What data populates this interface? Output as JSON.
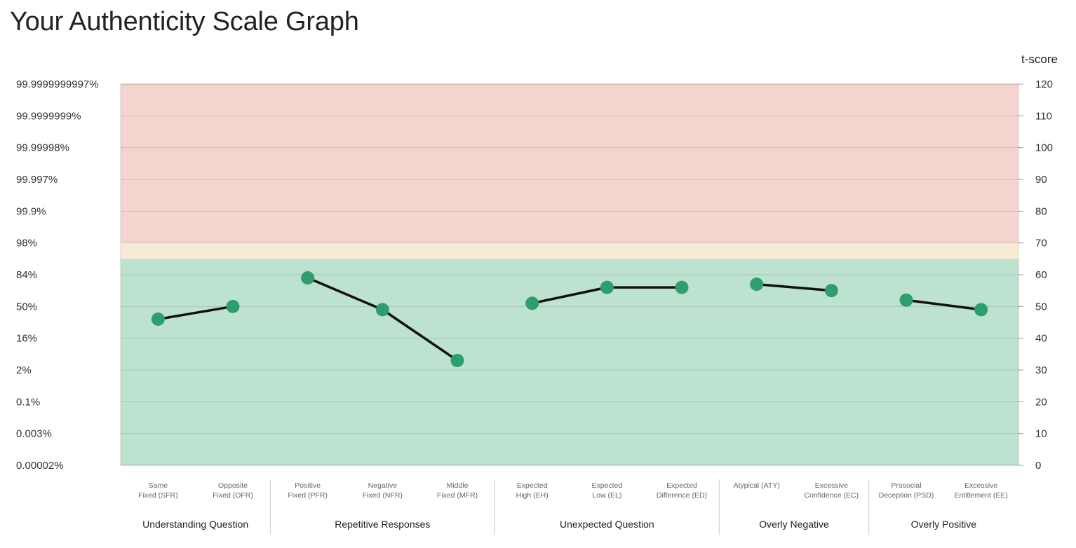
{
  "page": {
    "title": "Your Authenticity Scale Graph"
  },
  "chart_data": {
    "type": "line",
    "title": "Your Authenticity Scale Graph",
    "y_right_label": "t-score",
    "ylim": [
      0,
      120
    ],
    "y_right_ticks": [
      0,
      10,
      20,
      30,
      40,
      50,
      60,
      70,
      80,
      90,
      100,
      110,
      120
    ],
    "y_left_ticks": [
      {
        "t": 0,
        "label": "0.00002%"
      },
      {
        "t": 10,
        "label": "0.003%"
      },
      {
        "t": 20,
        "label": "0.1%"
      },
      {
        "t": 30,
        "label": "2%"
      },
      {
        "t": 40,
        "label": "16%"
      },
      {
        "t": 50,
        "label": "50%"
      },
      {
        "t": 60,
        "label": "84%"
      },
      {
        "t": 70,
        "label": "98%"
      },
      {
        "t": 80,
        "label": "99.9%"
      },
      {
        "t": 90,
        "label": "99.997%"
      },
      {
        "t": 100,
        "label": "99.99998%"
      },
      {
        "t": 110,
        "label": "99.9999999%"
      },
      {
        "t": 120,
        "label": "99.9999999997%"
      }
    ],
    "bands": [
      {
        "from": 0,
        "to": 65,
        "color": "#bde2d0"
      },
      {
        "from": 65,
        "to": 70,
        "color": "#f8ebd5"
      },
      {
        "from": 70,
        "to": 120,
        "color": "#f3d4cf"
      }
    ],
    "groups": [
      {
        "name": "Understanding Question",
        "categories": [
          {
            "line1": "Same",
            "line2": "Fixed (SFR)",
            "value": 46
          },
          {
            "line1": "Opposite",
            "line2": "Fixed (OFR)",
            "value": 50
          }
        ]
      },
      {
        "name": "Repetitive Responses",
        "categories": [
          {
            "line1": "Positive",
            "line2": "Fixed (PFR)",
            "value": 59
          },
          {
            "line1": "Negative",
            "line2": "Fixed (NFR)",
            "value": 49
          },
          {
            "line1": "Middle",
            "line2": "Fixed (MFR)",
            "value": 33
          }
        ]
      },
      {
        "name": "Unexpected Question",
        "categories": [
          {
            "line1": "Expected",
            "line2": "High (EH)",
            "value": 51
          },
          {
            "line1": "Expected",
            "line2": "Low (EL)",
            "value": 56
          },
          {
            "line1": "Expected",
            "line2": "Difference (ED)",
            "value": 56
          }
        ]
      },
      {
        "name": "Overly Negative",
        "categories": [
          {
            "line1": "Atypical (ATY)",
            "line2": "",
            "value": 57
          },
          {
            "line1": "Excessive",
            "line2": "Confidence (EC)",
            "value": 55
          }
        ]
      },
      {
        "name": "Overly Positive",
        "categories": [
          {
            "line1": "Prosocial",
            "line2": "Deception (PSD)",
            "value": 52
          },
          {
            "line1": "Excessive",
            "line2": "Entitlement (EE)",
            "value": 49
          }
        ]
      }
    ],
    "line_color": "#111111",
    "marker_color": "#2f9e6e",
    "grid": true
  }
}
